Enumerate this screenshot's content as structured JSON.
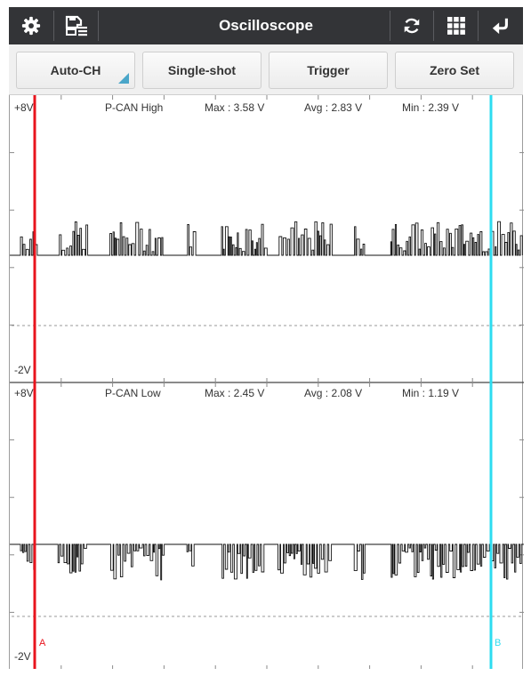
{
  "toolbar": {
    "title": "Oscilloscope",
    "icons": [
      "gear-icon",
      "save-file-icon",
      "refresh-icon",
      "grid-icon",
      "return-icon"
    ]
  },
  "function_buttons": {
    "auto_ch": "Auto-CH",
    "single_shot": "Single-shot",
    "trigger": "Trigger",
    "zero_set": "Zero Set"
  },
  "channels": [
    {
      "name": "P-CAN High",
      "scale_top": "+8V",
      "scale_bottom": "-2V",
      "max": "Max : 3.58 V",
      "avg": "Avg : 2.83 V",
      "min": "Min : 2.39 V"
    },
    {
      "name": "P-CAN Low",
      "scale_top": "+8V",
      "scale_bottom": "-2V",
      "max": "Max : 2.45 V",
      "avg": "Avg : 2.08 V",
      "min": "Min : 1.19 V"
    }
  ],
  "cursors": {
    "a_label": "A",
    "b_label": "B",
    "a_color": "#e8141d",
    "b_color": "#2ddcf0"
  },
  "colors": {
    "toolbar_bg": "#333437",
    "trace": "#111111",
    "corner_accent": "#4aa6c9"
  }
}
